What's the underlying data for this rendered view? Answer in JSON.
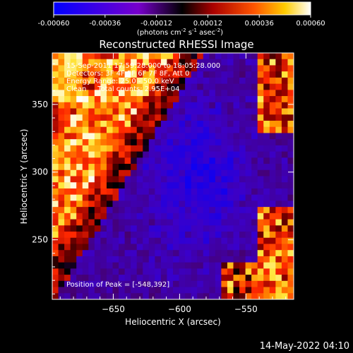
{
  "chart_data": {
    "type": "heatmap",
    "title": "Reconstructed RHESSI Image",
    "colorbar": {
      "range": [
        -0.0006,
        0.0006
      ],
      "tick_labels": [
        "-0.00060",
        "-0.00036",
        "-0.00012",
        "0.00012",
        "0.00036",
        "0.00060"
      ],
      "unit_prefix": "(photons cm",
      "unit_exp1": "-2",
      "unit_mid": " s",
      "unit_exp2": "-1",
      "unit_mid2": " asec",
      "unit_exp3": "-2",
      "unit_suffix": ")",
      "colormap": "red-temperature with blue negative"
    },
    "xlabel": "Heliocentric X (arcsec)",
    "ylabel": "Heliocentric Y (arcsec)",
    "xlim": [
      -696,
      -514
    ],
    "ylim": [
      206,
      388
    ],
    "x_ticks": [
      -650,
      -600,
      -550
    ],
    "x_tick_labels": [
      "−650",
      "−600",
      "−550"
    ],
    "y_ticks": [
      250,
      300,
      350
    ],
    "y_tick_labels": [
      "250",
      "300",
      "350"
    ],
    "annotations": {
      "time_range": "15-Sep-2011 17:59:28.000 to 18:05:28.000",
      "detectors": "Detectors: 3F 4F 5F 6F 7F 8F, Att 0",
      "energy": "Energy Range: 25.0 - 50.0 keV",
      "clean": "Clean     Total counts: 2.95E+04",
      "peak": "Position of Peak = [-548,392]"
    },
    "grid": false,
    "color_scale": {
      "min": -0.0006,
      "max": 0.0006
    },
    "map_summary": "bright emission band along upper-left diagonal; negative (blue/purple) region toward lower-right; bright spots along right and bottom edges"
  },
  "footer": {
    "date": "14-May-2022 04:10"
  }
}
